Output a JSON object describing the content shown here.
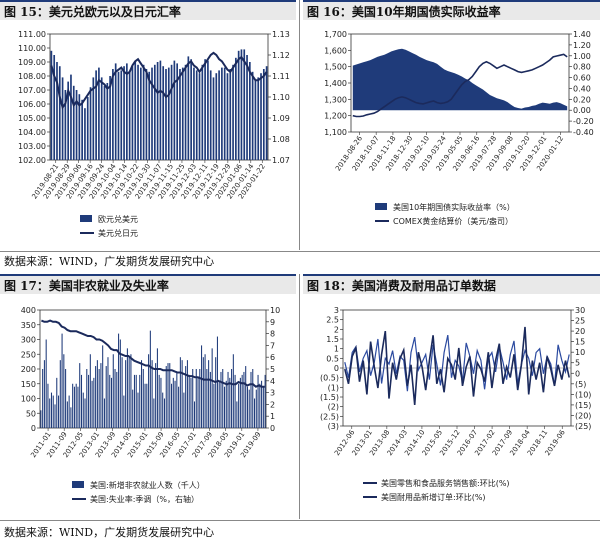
{
  "charts": [
    {
      "title": "图 15：美元兑欧元以及日元汇率",
      "type": "bar+line",
      "x_labels": [
        "2019-08-21",
        "2019-08-29",
        "2019-09-06",
        "2019-09-16",
        "2019-09-24",
        "2019-10-04",
        "2019-10-14",
        "2019-10-22",
        "2019-10-30",
        "2019-11-07",
        "2019-11-15",
        "2019-11-25",
        "2019-12-03",
        "2019-12-11",
        "2019-12-19",
        "2019-12-29",
        "2020-01-06",
        "2020-01-14",
        "2020-01-22"
      ],
      "y_left": {
        "min": 102,
        "max": 111,
        "step": 1,
        "format": "2"
      },
      "y_right": {
        "min": 1.07,
        "max": 1.13,
        "step": 0.01,
        "format": "2"
      },
      "legend": [
        "欧元兑美元",
        "美元兑日元"
      ],
      "chart_data": {
        "bars_axis": "left",
        "bars": [
          109.8,
          109.5,
          109.0,
          108.7,
          107.9,
          107.0,
          107.6,
          108.1,
          107.3,
          107.0,
          106.7,
          106.3,
          105.7,
          106.5,
          107.2,
          107.9,
          108.4,
          108.6,
          107.9,
          107.3,
          107.5,
          108.0,
          108.5,
          108.9,
          108.3,
          108.4,
          108.7,
          108.9,
          108.3,
          108.7,
          109.0,
          108.8,
          108.6,
          108.8,
          108.5,
          108.3,
          108.6,
          108.8,
          109.0,
          109.1,
          108.7,
          108.5,
          108.6,
          108.8,
          109.1,
          108.9,
          108.5,
          108.6,
          108.8,
          109.4,
          109.2,
          108.6,
          108.4,
          108.2,
          108.8,
          109.2,
          109.1,
          108.4,
          107.9,
          108.2,
          108.4,
          108.6,
          108.6,
          108.2,
          108.5,
          108.8,
          109.3,
          109.8,
          109.9,
          109.9,
          109.5,
          109.0,
          108.3,
          107.7,
          107.9,
          108.2,
          108.5,
          108.7
        ],
        "line_axis": "right",
        "line": [
          1.115,
          1.11,
          1.107,
          1.1,
          1.095,
          1.097,
          1.103,
          1.1,
          1.096,
          1.098,
          1.096,
          1.097,
          1.099,
          1.101,
          1.103,
          1.104,
          1.105,
          1.108,
          1.107,
          1.106,
          1.104,
          1.105,
          1.11,
          1.112,
          1.113,
          1.114,
          1.112,
          1.111,
          1.112,
          1.115,
          1.117,
          1.118,
          1.116,
          1.114,
          1.112,
          1.108,
          1.106,
          1.104,
          1.102,
          1.103,
          1.102,
          1.1,
          1.101,
          1.104,
          1.107,
          1.108,
          1.11,
          1.112,
          1.114,
          1.116,
          1.117,
          1.115,
          1.114,
          1.112,
          1.114,
          1.116,
          1.118,
          1.12,
          1.121,
          1.12,
          1.118,
          1.117,
          1.115,
          1.113,
          1.112,
          1.114,
          1.116,
          1.118,
          1.119,
          1.117,
          1.115,
          1.112,
          1.11,
          1.108,
          1.108,
          1.109,
          1.11,
          1.112
        ]
      }
    },
    {
      "title": "图 16：美国10年期国债实际收益率",
      "type": "area+line",
      "x_labels": [
        "2018-08-26",
        "2018-10-07",
        "2018-11-18",
        "2018-12-30",
        "2019-02-10",
        "2019-03-24",
        "2019-05-05",
        "2019-06-16",
        "2019-07-28",
        "2019-09-08",
        "2019-10-20",
        "2019-12-01",
        "2020-01-12"
      ],
      "y_left": {
        "min": 1100,
        "max": 1700,
        "step": 100,
        "format": "comma"
      },
      "y_right": {
        "min": -0.4,
        "max": 1.4,
        "step": 0.2,
        "format": "neg2"
      },
      "legend": [
        "美国10年期国债实际收益率（%）",
        "COMEX黄金结算价（美元/盎司）"
      ],
      "chart_data": {
        "area_axis": "right",
        "area": [
          0.82,
          0.84,
          0.86,
          0.88,
          0.9,
          0.92,
          0.95,
          0.98,
          1.0,
          1.02,
          1.05,
          1.08,
          1.1,
          1.12,
          1.13,
          1.11,
          1.08,
          1.05,
          1.02,
          0.98,
          0.95,
          0.92,
          0.9,
          0.88,
          0.85,
          0.8,
          0.75,
          0.72,
          0.7,
          0.68,
          0.65,
          0.62,
          0.58,
          0.55,
          0.5,
          0.46,
          0.42,
          0.38,
          0.33,
          0.28,
          0.25,
          0.22,
          0.2,
          0.18,
          0.15,
          0.1,
          0.06,
          0.04,
          0.03,
          0.05,
          0.06,
          0.08,
          0.09,
          0.12,
          0.14,
          0.13,
          0.12,
          0.14,
          0.15,
          0.13,
          0.1,
          0.07
        ],
        "line_axis": "left",
        "line": [
          1200,
          1195,
          1195,
          1198,
          1205,
          1210,
          1215,
          1225,
          1240,
          1255,
          1270,
          1285,
          1300,
          1310,
          1315,
          1310,
          1300,
          1290,
          1280,
          1275,
          1272,
          1278,
          1285,
          1290,
          1280,
          1275,
          1278,
          1285,
          1300,
          1330,
          1360,
          1390,
          1410,
          1420,
          1440,
          1470,
          1500,
          1520,
          1530,
          1520,
          1505,
          1490,
          1500,
          1510,
          1500,
          1490,
          1480,
          1470,
          1465,
          1470,
          1475,
          1480,
          1490,
          1500,
          1510,
          1525,
          1540,
          1560,
          1565,
          1570,
          1575,
          1560
        ]
      }
    },
    {
      "title": "图 17：美国非农就业及失业率",
      "type": "bar+line",
      "x_labels": [
        "2011-01",
        "2011-09",
        "2012-05",
        "2013-01",
        "2013-09",
        "2014-05",
        "2015-01",
        "2015-09",
        "2016-05",
        "2017-01",
        "2017-09",
        "2018-05",
        "2019-01",
        "2019-09"
      ],
      "y_left": {
        "min": 0,
        "max": 400,
        "step": 50,
        "format": "int"
      },
      "y_right": {
        "min": 0,
        "max": 10,
        "step": 1,
        "format": "int"
      },
      "legend": [
        "美国:新增非农就业人数（千人）",
        "美国:失业率:季调（%，右轴）"
      ],
      "chart_data": {
        "bars_axis": "left",
        "bars": [
          60,
          200,
          230,
          300,
          150,
          100,
          120,
          110,
          80,
          170,
          110,
          230,
          320,
          250,
          200,
          90,
          110,
          70,
          150,
          140,
          150,
          140,
          220,
          180,
          120,
          100,
          200,
          180,
          250,
          160,
          170,
          210,
          230,
          200,
          220,
          280,
          100,
          210,
          240,
          180,
          170,
          250,
          200,
          190,
          320,
          300,
          240,
          110,
          230,
          270,
          240,
          250,
          130,
          180,
          180,
          120,
          180,
          230,
          200,
          150,
          150,
          250,
          330,
          230,
          100,
          220,
          270,
          180,
          170,
          120,
          100,
          210,
          220,
          220,
          150,
          170,
          160,
          190,
          140,
          240,
          230,
          120,
          210,
          230,
          180,
          170,
          200,
          90,
          200,
          170,
          200,
          280,
          240,
          250,
          200,
          230,
          190,
          270,
          150,
          240,
          310,
          160,
          190,
          200,
          140,
          160,
          190,
          170,
          200,
          250,
          180,
          90,
          150,
          170,
          180,
          190,
          210,
          140,
          130,
          190,
          200,
          100,
          130,
          180,
          150,
          160,
          140,
          180
        ],
        "line_axis": "right",
        "line": [
          9.1,
          9.0,
          9.0,
          9.1,
          9.0,
          9.0,
          8.9,
          8.6,
          8.5,
          8.3,
          8.2,
          8.2,
          8.2,
          8.1,
          8.0,
          7.9,
          7.8,
          7.8,
          7.7,
          7.5,
          7.5,
          7.4,
          7.2,
          7.0,
          6.7,
          6.6,
          6.6,
          6.3,
          6.2,
          6.1,
          6.1,
          5.9,
          5.7,
          5.6,
          5.5,
          5.4,
          5.3,
          5.3,
          5.1,
          5.0,
          5.0,
          5.0,
          4.9,
          4.9,
          4.9,
          4.9,
          4.8,
          4.7,
          4.7,
          4.6,
          4.5,
          4.4,
          4.4,
          4.3,
          4.3,
          4.2,
          4.1,
          4.1,
          4.1,
          4.0,
          3.9,
          4.0,
          3.9,
          3.8,
          3.7,
          3.8,
          3.7,
          3.7,
          3.9,
          3.8,
          3.8,
          3.6,
          3.7,
          3.7,
          3.5,
          3.6,
          3.5,
          3.5
        ]
      }
    },
    {
      "title": "图 18：美国消费及耐用品订单数据",
      "type": "line+line",
      "x_labels": [
        "2012-06",
        "2013-01",
        "2013-08",
        "2014-03",
        "2014-10",
        "2015-05",
        "2015-12",
        "2016-07",
        "2017-02",
        "2017-09",
        "2018-04",
        "2018-11",
        "2019-06"
      ],
      "y_left": {
        "min": -3,
        "max": 3,
        "step": 0.5,
        "format": "paren"
      },
      "y_right": {
        "min": -25,
        "max": 30,
        "step": 5,
        "format": "paren"
      },
      "legend": [
        "美国零售和食品服务销售额:环比(%)",
        "美国耐用品新增订单:环比(%)"
      ],
      "chart_data": {
        "line1_axis": "left",
        "line1": [
          0.3,
          -0.5,
          0.8,
          1.1,
          -0.2,
          0.5,
          0.9,
          -0.4,
          0.3,
          1.5,
          -0.8,
          0.5,
          0.2,
          0.9,
          -0.3,
          0.6,
          0.4,
          -1.2,
          0.8,
          1.6,
          -0.1,
          0.3,
          0.7,
          -0.6,
          1.2,
          0.2,
          -0.9,
          0.8,
          1.7,
          -0.5,
          0.4,
          0.1,
          -0.7,
          1.3,
          0.6,
          -0.3,
          0.9,
          0.4,
          -1.1,
          0.5,
          0.8,
          -0.2,
          1.1,
          0.3,
          -0.6,
          0.7,
          1.4,
          -0.8,
          0.2,
          0.9,
          0.5,
          -0.4,
          0.8,
          1.0,
          -0.3,
          0.6,
          0.2,
          -0.9,
          1.2,
          0.4,
          -0.2,
          0.7
        ],
        "line2_axis": "right",
        "line2": [
          2,
          -5,
          8,
          12,
          -4,
          6,
          -10,
          15,
          3,
          -7,
          9,
          20,
          -12,
          5,
          -3,
          7,
          11,
          -6,
          4,
          -15,
          10,
          3,
          -8,
          6,
          18,
          -5,
          2,
          -9,
          7,
          4,
          -3,
          12,
          -6,
          3,
          8,
          -11,
          5,
          2,
          -4,
          10,
          -7,
          6,
          14,
          -5,
          3,
          -2,
          9,
          -8,
          4,
          22,
          -10,
          6,
          -3,
          5,
          -9,
          8,
          2,
          -6,
          4,
          -3,
          6,
          -2
        ]
      }
    }
  ],
  "sources": [
    "数据来源：WIND，广发期货发展研究中心",
    "数据来源：WIND，广发期货发展研究中心"
  ]
}
